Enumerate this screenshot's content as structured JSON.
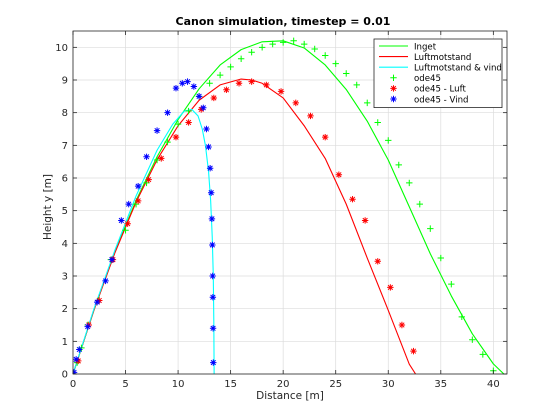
{
  "chart_data": {
    "type": "line",
    "title": "Canon simulation, timestep = 0.01",
    "xlabel": "Distance [m]",
    "ylabel": "Height y [m]",
    "xlim": [
      0,
      41.3
    ],
    "ylim": [
      0,
      10.5
    ],
    "xticks": [
      0,
      5,
      10,
      15,
      20,
      25,
      30,
      35,
      40
    ],
    "yticks": [
      0,
      1,
      2,
      3,
      4,
      5,
      6,
      7,
      8,
      9,
      10
    ],
    "grid": true,
    "legend_position": "top-right",
    "series": [
      {
        "name": "Inget",
        "style": "line",
        "color": "#00ff00",
        "x": [
          0,
          2,
          4,
          6,
          8,
          10,
          12,
          14,
          16,
          18,
          20,
          22,
          24,
          26,
          28,
          30,
          32,
          34,
          36,
          38,
          40,
          41.0
        ],
        "y": [
          0,
          1.96,
          3.75,
          5.31,
          6.65,
          7.79,
          8.73,
          9.46,
          9.93,
          10.17,
          10.2,
          9.98,
          9.46,
          8.71,
          7.74,
          6.55,
          5.12,
          3.68,
          2.39,
          1.23,
          0.31,
          0
        ]
      },
      {
        "name": "Luftmotstand",
        "style": "line",
        "color": "#ff0000",
        "x": [
          0,
          2,
          4,
          6,
          8,
          10,
          12,
          14,
          16,
          17,
          18,
          20,
          22,
          24,
          26,
          28,
          30,
          32,
          32.6
        ],
        "y": [
          0,
          1.96,
          3.72,
          5.26,
          6.56,
          7.6,
          8.38,
          8.85,
          9.03,
          9.0,
          8.9,
          8.45,
          7.6,
          6.6,
          5.2,
          3.55,
          1.95,
          0.3,
          0
        ]
      },
      {
        "name": "Luftmotstand & vind",
        "style": "line",
        "color": "#00ffff",
        "x": [
          0,
          2,
          4,
          6,
          8,
          9.5,
          10.6,
          11.3,
          11.9,
          12.3,
          12.6,
          12.9,
          13.1,
          13.25,
          13.35,
          13.4,
          13.43
        ],
        "y": [
          0,
          2.0,
          3.8,
          5.45,
          6.85,
          7.65,
          8.05,
          8.1,
          7.9,
          7.5,
          7.0,
          6.2,
          5.3,
          4.2,
          3.0,
          1.6,
          0
        ]
      },
      {
        "name": "ode45",
        "style": "marker",
        "marker": "+",
        "color": "#00ff00",
        "x": [
          0,
          0.4,
          0.8,
          1.4,
          2.4,
          3.6,
          5.0,
          6.0,
          7.0,
          8.0,
          9.0,
          10.0,
          11.0,
          12.0,
          13.0,
          14.0,
          15.0,
          16.0,
          17.0,
          18.0,
          19.0,
          20.0,
          21.0,
          22.0,
          23.0,
          24.0,
          25.0,
          26.0,
          27.0,
          28.0,
          29.0,
          30.0,
          31.0,
          32.0,
          33.0,
          34.0,
          35.0,
          36.0,
          37.0,
          38.0,
          39.0,
          40.0
        ],
        "y": [
          0,
          0.35,
          0.8,
          1.5,
          2.25,
          3.5,
          4.4,
          5.2,
          5.85,
          6.55,
          7.1,
          7.65,
          8.05,
          8.5,
          8.9,
          9.15,
          9.4,
          9.65,
          9.85,
          10.0,
          10.1,
          10.15,
          10.2,
          10.1,
          9.95,
          9.75,
          9.5,
          9.2,
          8.85,
          8.3,
          7.7,
          7.15,
          6.4,
          5.85,
          5.2,
          4.45,
          3.55,
          2.75,
          1.75,
          1.05,
          0.6,
          0.1
        ]
      },
      {
        "name": "ode45 - Luft",
        "style": "marker",
        "marker": "*",
        "color": "#ff0000",
        "x": [
          0,
          0.5,
          1.5,
          2.5,
          3.8,
          5.2,
          6.2,
          7.2,
          8.4,
          9.8,
          11.0,
          12.2,
          13.4,
          14.6,
          15.8,
          17.0,
          18.4,
          19.8,
          21.2,
          22.6,
          24.0,
          25.3,
          26.6,
          27.8,
          29.0,
          30.2,
          31.3,
          32.4
        ],
        "y": [
          0,
          0.4,
          1.5,
          2.25,
          3.5,
          4.6,
          5.3,
          5.95,
          6.6,
          7.25,
          7.7,
          8.1,
          8.45,
          8.7,
          8.9,
          8.95,
          8.85,
          8.65,
          8.3,
          7.9,
          7.25,
          6.1,
          5.35,
          4.7,
          3.45,
          2.65,
          1.5,
          0.7
        ]
      },
      {
        "name": "ode45 - Vind",
        "style": "marker",
        "marker": "*",
        "color": "#0000ff",
        "x": [
          0.1,
          0.3,
          0.6,
          1.4,
          2.3,
          3.1,
          3.7,
          4.6,
          5.3,
          6.2,
          7.0,
          8.0,
          9.0,
          9.8,
          10.4,
          10.9,
          11.5,
          12.0,
          12.4,
          12.7,
          12.9,
          13.05,
          13.15,
          13.22,
          13.26,
          13.29,
          13.31,
          13.33,
          13.35
        ],
        "y": [
          0.05,
          0.45,
          0.75,
          1.45,
          2.2,
          2.85,
          3.5,
          4.7,
          5.2,
          5.75,
          6.65,
          7.45,
          8.0,
          8.75,
          8.9,
          8.95,
          8.8,
          8.5,
          8.15,
          7.5,
          6.95,
          6.3,
          5.55,
          4.75,
          3.95,
          3.0,
          2.35,
          1.4,
          0.35
        ]
      }
    ]
  }
}
